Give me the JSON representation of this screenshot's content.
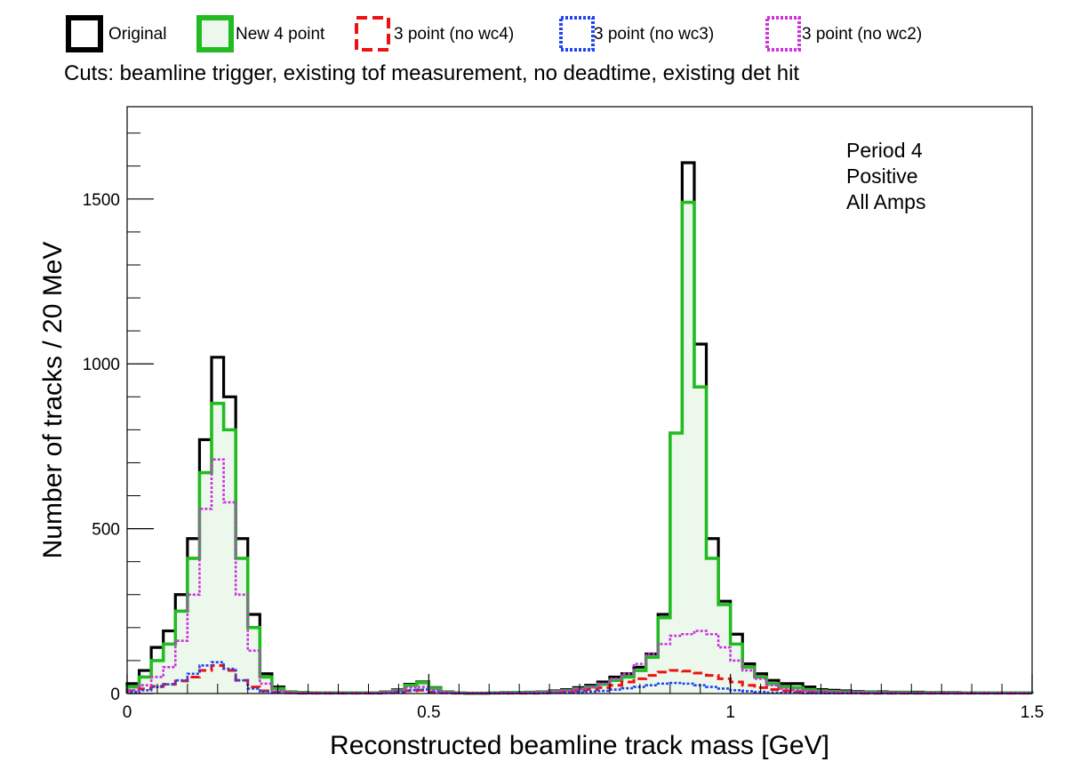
{
  "legend": [
    {
      "label": "Original",
      "color": "#000000",
      "style": "solid",
      "fill": "#ffffff"
    },
    {
      "label": "New 4 point",
      "color": "#22bb22",
      "style": "solid",
      "fill": "#edf8ed"
    },
    {
      "label": "3 point (no wc4)",
      "color": "#ee1111",
      "style": "dashed",
      "fill": "#ffffff"
    },
    {
      "label": "3 point (no wc3)",
      "color": "#2244ee",
      "style": "dotted",
      "fill": "#ffffff"
    },
    {
      "label": "3 point (no wc2)",
      "color": "#cc33dd",
      "style": "dotted",
      "fill": "#ffffff"
    }
  ],
  "cuts_text": "Cuts: beamline trigger, existing tof measurement, no deadtime, existing det hit",
  "info": {
    "line1": "Period 4",
    "line2": "Positive",
    "line3": "All Amps"
  },
  "chart_data": {
    "type": "histogram",
    "xlabel": "Reconstructed beamline track mass [GeV]",
    "ylabel": "Number of tracks / 20 MeV",
    "xlim": [
      0,
      1.5
    ],
    "ylim": [
      0,
      1780
    ],
    "xticks": [
      0,
      0.5,
      1,
      1.5
    ],
    "xtick_labels": [
      "0",
      "0.5",
      "1",
      "1.5"
    ],
    "yticks": [
      0,
      500,
      1000,
      1500
    ],
    "ytick_labels": [
      "0",
      "500",
      "1000",
      "1500"
    ],
    "bin_width": 0.02,
    "bins_start": 0,
    "series": [
      {
        "name": "Original",
        "values": [
          30,
          70,
          140,
          190,
          300,
          470,
          770,
          1020,
          900,
          470,
          240,
          60,
          20,
          5,
          3,
          2,
          2,
          2,
          2,
          2,
          2,
          5,
          12,
          28,
          35,
          18,
          5,
          2,
          1,
          1,
          2,
          3,
          3,
          4,
          5,
          8,
          12,
          18,
          25,
          35,
          50,
          60,
          80,
          120,
          240,
          790,
          1610,
          1060,
          470,
          280,
          180,
          90,
          60,
          40,
          30,
          30,
          20,
          12,
          10,
          8,
          6,
          5,
          5,
          4,
          4,
          4,
          3,
          3,
          3,
          2,
          2,
          2,
          2,
          2,
          2
        ]
      },
      {
        "name": "New 4 point",
        "values": [
          20,
          50,
          100,
          150,
          250,
          410,
          670,
          880,
          800,
          410,
          200,
          50,
          15,
          4,
          3,
          2,
          2,
          2,
          2,
          2,
          2,
          4,
          10,
          25,
          33,
          16,
          4,
          2,
          1,
          1,
          2,
          2,
          3,
          3,
          4,
          6,
          9,
          14,
          20,
          28,
          40,
          50,
          70,
          110,
          230,
          790,
          1490,
          930,
          410,
          270,
          150,
          80,
          50,
          30,
          20,
          18,
          12,
          8,
          6,
          5,
          4,
          4,
          3,
          3,
          3,
          2,
          2,
          2,
          2,
          2,
          2,
          2,
          2,
          2,
          2
        ]
      },
      {
        "name": "3 point (no wc4)",
        "values": [
          8,
          14,
          22,
          28,
          38,
          50,
          70,
          85,
          70,
          40,
          20,
          8,
          4,
          2,
          1,
          1,
          1,
          1,
          1,
          1,
          1,
          2,
          4,
          8,
          10,
          5,
          2,
          1,
          1,
          1,
          1,
          1,
          1,
          1,
          2,
          3,
          5,
          8,
          12,
          18,
          25,
          35,
          45,
          55,
          65,
          70,
          68,
          62,
          55,
          45,
          35,
          25,
          18,
          12,
          8,
          6,
          4,
          3,
          2,
          2,
          2,
          1,
          1,
          1,
          1,
          1,
          1,
          1,
          1,
          1,
          1,
          1,
          1,
          1,
          1
        ]
      },
      {
        "name": "3 point (no wc3)",
        "values": [
          5,
          10,
          20,
          28,
          40,
          60,
          85,
          95,
          75,
          40,
          15,
          6,
          3,
          2,
          1,
          1,
          1,
          1,
          1,
          1,
          1,
          2,
          5,
          10,
          12,
          6,
          2,
          1,
          1,
          1,
          1,
          1,
          1,
          1,
          1,
          2,
          3,
          4,
          6,
          8,
          12,
          16,
          20,
          25,
          30,
          32,
          30,
          25,
          20,
          15,
          10,
          7,
          5,
          3,
          2,
          2,
          1,
          1,
          1,
          1,
          1,
          1,
          1,
          1,
          1,
          1,
          1,
          1,
          1,
          1,
          1,
          1,
          1,
          1,
          1
        ]
      },
      {
        "name": "3 point (no wc2)",
        "values": [
          10,
          25,
          50,
          80,
          160,
          300,
          560,
          710,
          580,
          300,
          130,
          30,
          8,
          3,
          2,
          1,
          1,
          1,
          1,
          1,
          2,
          4,
          10,
          18,
          20,
          10,
          3,
          1,
          1,
          1,
          1,
          2,
          2,
          3,
          4,
          6,
          9,
          14,
          20,
          30,
          45,
          60,
          90,
          120,
          150,
          175,
          180,
          190,
          180,
          140,
          100,
          70,
          45,
          25,
          15,
          10,
          8,
          6,
          5,
          4,
          4,
          3,
          3,
          3,
          2,
          2,
          2,
          2,
          2,
          2,
          2,
          2,
          2,
          2,
          2
        ]
      }
    ]
  }
}
